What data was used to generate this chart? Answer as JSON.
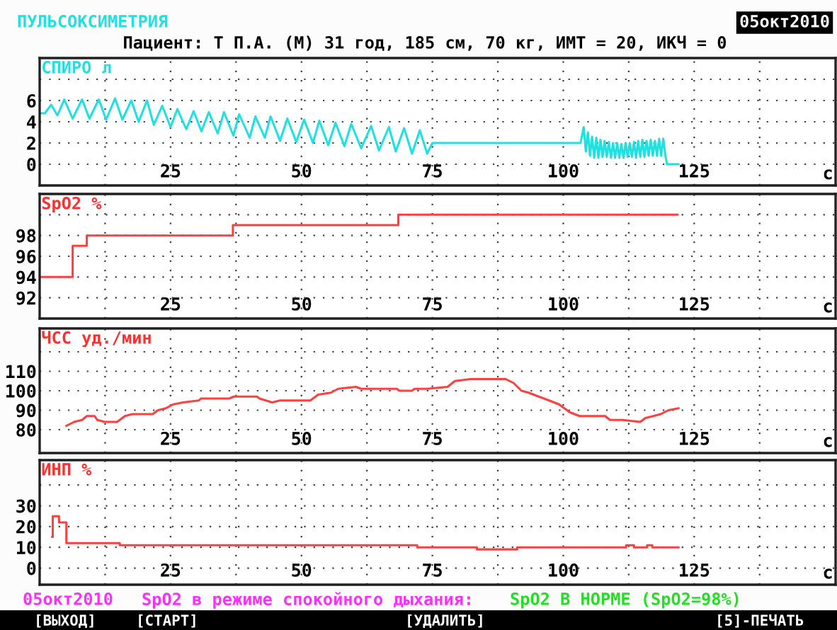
{
  "chart_data": [
    {
      "type": "line",
      "title": "ПУЛЬСОКСИМЕТРИЯ",
      "subtitle": "Пациент: Т П.А. (М) 31 год, 185 см, 70 кг, ИМТ = 20, ИКЧ = 0",
      "ylabel": "СПИРО л",
      "xlabel": "с",
      "annotations": [
        "05окт2010"
      ],
      "xlim": [
        0,
        152
      ],
      "xticks": [
        {
          "value": 12.5,
          "label": null
        },
        25,
        {
          "value": 37.5,
          "label": null
        },
        50,
        {
          "value": 62.5,
          "label": null
        },
        75,
        {
          "value": 87.5,
          "label": null
        },
        100,
        {
          "value": 112.5,
          "label": null
        },
        125,
        {
          "value": 137.5,
          "label": null
        }
      ],
      "ylim": [
        -2,
        10
      ],
      "yticks": [
        0,
        2,
        4,
        6,
        {
          "value": 8,
          "label": null
        }
      ],
      "grid": true,
      "series": [
        {
          "color": "#20e0e0",
          "x": [
            0,
            1.0,
            2.2,
            3.4,
            4.7,
            6.3,
            8.1,
            9.5,
            11.3,
            12.7,
            14.4,
            15.8,
            17.5,
            18.9,
            20.5,
            21.8,
            23.4,
            25.0,
            26.3,
            28.0,
            29.4,
            30.9,
            32.3,
            34.0,
            35.2,
            37.0,
            38.1,
            40.1,
            41.2,
            43.0,
            44.1,
            45.9,
            47.3,
            49.0,
            50.5,
            52.2,
            53.4,
            55.1,
            56.5,
            58.2,
            59.5,
            61.4,
            63.3,
            64.8,
            66.7,
            68.0,
            69.6,
            71.1,
            72.6,
            74.0,
            75.0,
            103.3,
            103.9,
            104.3,
            104.7,
            105.1,
            105.5,
            105.9,
            106.3,
            106.7,
            107.1,
            107.5,
            107.9,
            108.3,
            108.7,
            109.1,
            109.5,
            109.9,
            110.3,
            110.7,
            111.1,
            111.5,
            111.9,
            112.3,
            112.7,
            113.1,
            113.5,
            113.9,
            114.3,
            114.7,
            115.1,
            115.5,
            115.9,
            116.3,
            116.7,
            117.1,
            117.5,
            117.9,
            118.3,
            118.7,
            119.1,
            119.5,
            119.8,
            122.0
          ],
          "values": [
            4.8,
            4.8,
            5.6,
            4.6,
            6.1,
            4.3,
            6.1,
            4.3,
            6.1,
            4.2,
            6.2,
            4.2,
            6.0,
            4.0,
            6.0,
            3.7,
            5.5,
            3.5,
            5.2,
            3.3,
            5.0,
            3.1,
            4.9,
            2.9,
            4.9,
            2.7,
            4.7,
            2.5,
            4.5,
            2.5,
            4.5,
            2.2,
            4.3,
            2.1,
            4.2,
            2.0,
            4.1,
            1.8,
            3.9,
            1.7,
            3.8,
            1.5,
            3.6,
            1.3,
            3.5,
            1.2,
            3.4,
            1.0,
            3.2,
            1.0,
            2.0,
            2.0,
            3.5,
            1.2,
            3.0,
            0.8,
            2.6,
            0.6,
            2.5,
            0.6,
            2.3,
            0.7,
            2.2,
            0.7,
            2.1,
            0.6,
            2.0,
            0.6,
            2.0,
            0.6,
            1.9,
            0.6,
            2.0,
            0.7,
            2.0,
            0.7,
            2.1,
            0.6,
            2.2,
            0.7,
            2.3,
            0.7,
            2.2,
            0.8,
            2.3,
            0.8,
            2.2,
            0.8,
            2.4,
            0.8,
            2.4,
            0.8,
            0,
            0
          ]
        }
      ]
    },
    {
      "type": "step",
      "ylabel": "SpO2 %",
      "xlabel": "с",
      "xlim": [
        0,
        152
      ],
      "xticks": [
        {
          "value": 12.5,
          "label": null
        },
        25,
        {
          "value": 37.5,
          "label": null
        },
        50,
        {
          "value": 62.5,
          "label": null
        },
        75,
        {
          "value": 87.5,
          "label": null
        },
        100,
        {
          "value": 112.5,
          "label": null
        },
        125,
        {
          "value": 137.5,
          "label": null
        }
      ],
      "ylim": [
        90,
        102
      ],
      "yticks": [
        92,
        94,
        96,
        98,
        {
          "value": 100,
          "label": null
        }
      ],
      "grid": true,
      "series": [
        {
          "color": "#ff4040",
          "x": [
            0,
            6.3,
            9.0,
            36.9,
            68.5,
            121.8
          ],
          "values": [
            94,
            97,
            98,
            99,
            100,
            100
          ]
        }
      ]
    },
    {
      "type": "line",
      "ylabel": "ЧСС уд./мин",
      "xlabel": "с",
      "xlim": [
        0,
        152
      ],
      "xticks": [
        {
          "value": 12.5,
          "label": null
        },
        25,
        {
          "value": 37.5,
          "label": null
        },
        50,
        {
          "value": 62.5,
          "label": null
        },
        75,
        {
          "value": 87.5,
          "label": null
        },
        100,
        {
          "value": 112.5,
          "label": null
        },
        125,
        {
          "value": 137.5,
          "label": null
        }
      ],
      "ylim": [
        68,
        132
      ],
      "yticks": [
        80,
        90,
        100,
        110,
        {
          "value": 120,
          "label": null
        }
      ],
      "grid": true,
      "series": [
        {
          "color": "#ff4040",
          "x": [
            5.1,
            6.6,
            8.1,
            9.0,
            10.5,
            11.0,
            12.4,
            14.8,
            16.3,
            17.7,
            21.6,
            22.6,
            24.1,
            25.5,
            27.4,
            30.4,
            30.8,
            36.2,
            37.1,
            41.5,
            42.0,
            44.4,
            45.9,
            51.7,
            53.2,
            55.6,
            57.0,
            60.4,
            61.4,
            68.2,
            68.7,
            71.1,
            71.6,
            74.0,
            77.9,
            79.3,
            82.3,
            89.0,
            90.5,
            92.0,
            93.4,
            95.3,
            97.3,
            99.2,
            101.2,
            103.1,
            108.0,
            108.9,
            111.3,
            114.7,
            115.7,
            117.2,
            118.6,
            120.1,
            122.0
          ],
          "values": [
            82,
            84,
            85,
            87,
            87,
            85,
            84,
            84,
            87,
            88,
            88,
            90,
            91,
            93,
            94,
            95,
            96,
            96,
            97,
            97,
            96,
            94,
            95,
            95,
            98,
            99,
            101,
            102,
            101,
            101,
            100,
            100,
            101,
            101,
            102,
            105,
            106,
            106,
            104,
            100,
            99,
            97,
            95,
            93,
            89,
            87,
            87,
            85,
            85,
            84,
            86,
            87,
            88,
            90,
            91
          ]
        }
      ]
    },
    {
      "type": "step",
      "ylabel": "ИНП %",
      "xlabel": "с",
      "annotations": [
        "05окт2010",
        "SpO2 в режиме спокойного дыхания:",
        "SpO2 В НОРМЕ (SpO2=98%)",
        "[ВЫХОД]",
        "[СТАРТ]",
        "[УДАЛИТЬ]",
        "[5]-ПЕЧАТЬ"
      ],
      "xlim": [
        0,
        152
      ],
      "xticks": [
        {
          "value": 12.5,
          "label": null
        },
        25,
        {
          "value": 37.5,
          "label": null
        },
        50,
        {
          "value": 62.5,
          "label": null
        },
        75,
        {
          "value": 87.5,
          "label": null
        },
        100,
        {
          "value": 112.5,
          "label": null
        },
        125,
        {
          "value": 137.5,
          "label": null
        }
      ],
      "ylim": [
        -8,
        52
      ],
      "yticks": [
        0,
        10,
        20,
        30,
        {
          "value": 40,
          "label": null
        }
      ],
      "grid": true,
      "series": [
        {
          "color": "#ff4040",
          "x": [
            2.4,
            2.5,
            3.7,
            5.1,
            15.3,
            72.1,
            83.5,
            91.2,
            112.0,
            113.5,
            116.0,
            117.0,
            119.6,
            122.0
          ],
          "values": [
            15,
            25,
            22,
            12,
            11,
            10,
            9,
            10,
            11,
            10,
            11,
            10,
            10,
            10
          ]
        }
      ]
    }
  ]
}
